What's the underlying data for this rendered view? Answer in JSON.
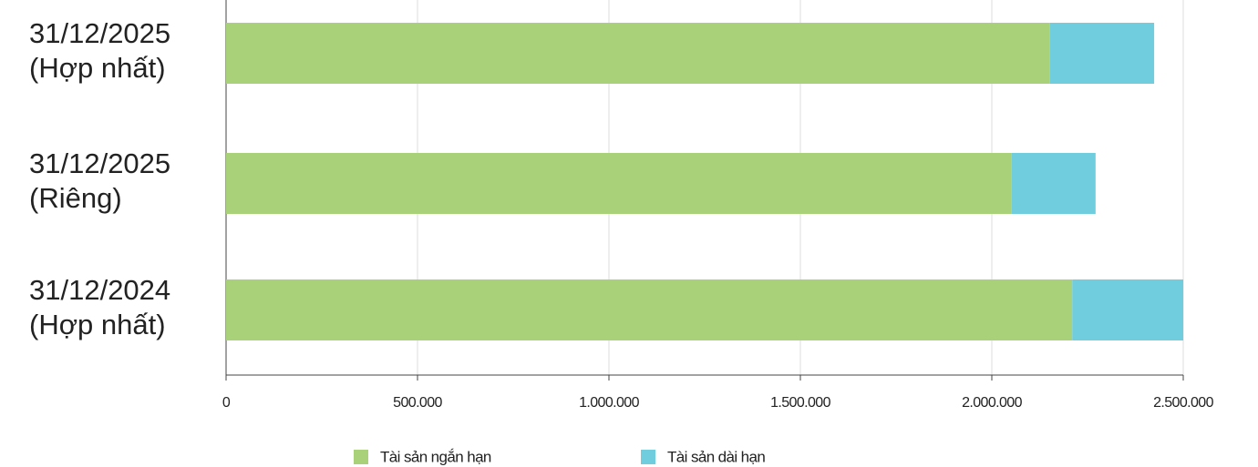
{
  "chart_data": {
    "type": "stacked-bar-horizontal",
    "categories": [
      [
        "31/12/2025",
        "(Hợp nhất)"
      ],
      [
        "31/12/2025",
        "(Riêng)"
      ],
      [
        "31/12/2024",
        "(Hợp nhất)"
      ]
    ],
    "series": [
      {
        "name": "Tài sản ngắn hạn",
        "color": "#a9d179",
        "values": [
          2152000,
          2052000,
          2210000
        ]
      },
      {
        "name": "Tài sản dài hạn",
        "color": "#6fcddd",
        "values": [
          272000,
          219000,
          290000
        ]
      }
    ],
    "xlim": [
      0,
      2500000
    ],
    "xticks": [
      0,
      {
        "value": 500000,
        "label": "500.000"
      },
      {
        "value": 1000000,
        "label": "1.000.000"
      },
      {
        "value": 1500000,
        "label": "1.500.000"
      },
      {
        "value": 2000000,
        "label": "2.000.000"
      },
      {
        "value": 2500000,
        "label": "2.500.000"
      }
    ],
    "grid": true,
    "legend": "bottom"
  }
}
